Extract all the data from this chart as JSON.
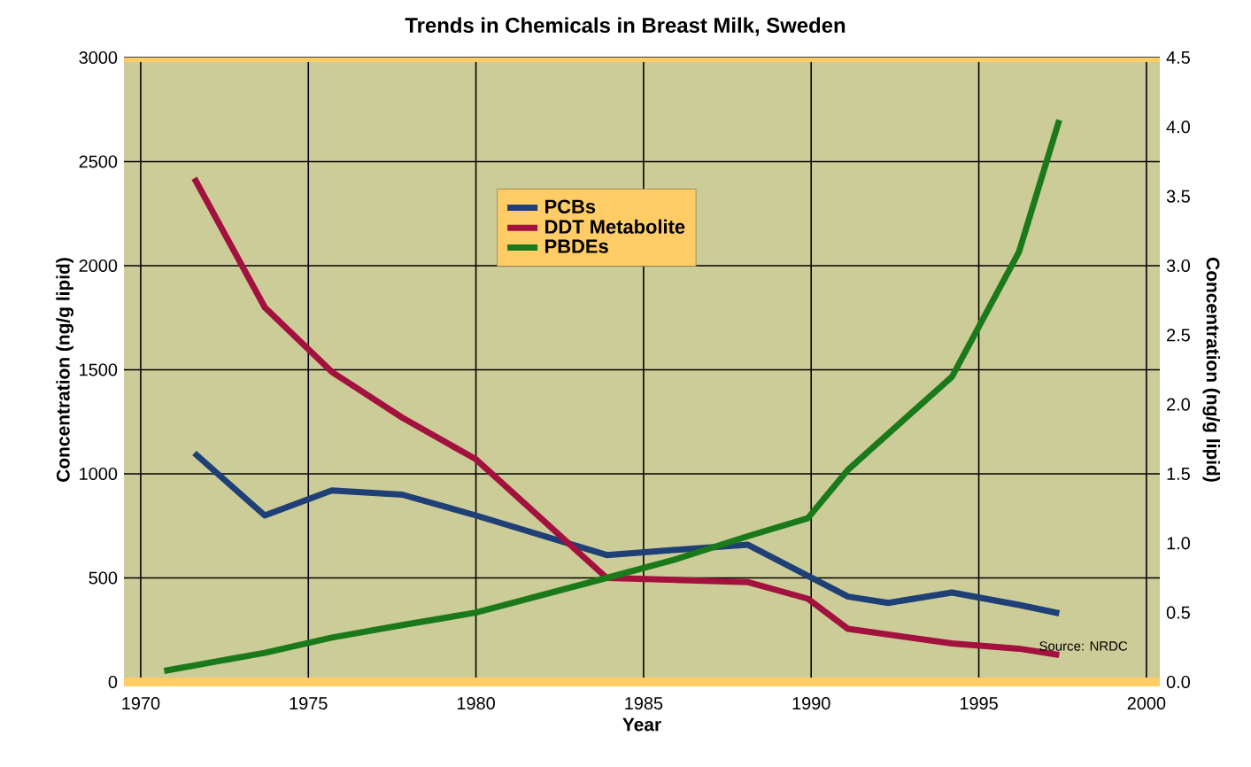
{
  "chart_data": {
    "type": "line",
    "title": "Trends in Chemicals in Breast Milk, Sweden",
    "xlabel": "Year",
    "ylabel": "Concentration (ng/g lipid)",
    "y2label": "Concentration (ng/g lipid)",
    "annotations": [
      "Source: NRDC"
    ],
    "series": [
      {
        "name": "PCBs",
        "color": "#1f3f77",
        "x": [
          1971.6,
          1973.7,
          1975.7,
          1977.8,
          1980.0,
          1983.9,
          1988.1,
          1989.9,
          1991.1,
          1992.3,
          1994.2,
          1996.2,
          1997.4
        ],
        "values": [
          1100,
          800,
          920,
          900,
          800,
          610,
          660,
          510,
          410,
          380,
          430,
          370,
          330
        ]
      },
      {
        "name": "DDT Metabolite",
        "color": "#a3123f",
        "x": [
          1971.6,
          1973.7,
          1975.7,
          1977.8,
          1980.0,
          1983.9,
          1988.1,
          1989.9,
          1991.1,
          1994.2,
          1996.2,
          1997.4
        ],
        "values": [
          2420,
          1800,
          1490,
          1270,
          1070,
          500,
          480,
          400,
          255,
          185,
          160,
          130
        ]
      },
      {
        "name": "PBDEs",
        "color": "#1a7a1a",
        "axis": "y2",
        "x": [
          1970.7,
          1973.7,
          1975.7,
          1977.8,
          1980.0,
          1983.9,
          1985.9,
          1988.1,
          1989.9,
          1991.1,
          1994.2,
          1996.2,
          1997.4
        ],
        "values": [
          0.08,
          0.21,
          0.32,
          0.41,
          0.5,
          0.75,
          0.88,
          1.05,
          1.18,
          1.53,
          2.2,
          3.1,
          4.05
        ]
      }
    ],
    "xlim": [
      1969.5,
      2000.4
    ],
    "ylim": [
      0,
      3000
    ],
    "y2lim": [
      0,
      4.5
    ],
    "xticks": [
      1970,
      1975,
      1980,
      1985,
      1990,
      1995,
      2000
    ],
    "yticks": [
      0,
      500,
      1000,
      1500,
      2000,
      2500,
      3000
    ],
    "y2ticks": [
      {
        "value": 0,
        "label": "0.0"
      },
      {
        "value": 0.5,
        "label": "0.5"
      },
      {
        "value": 1,
        "label": "1.0"
      },
      {
        "value": 1.5,
        "label": "1.5"
      },
      {
        "value": 2,
        "label": "2.0"
      },
      {
        "value": 2.5,
        "label": "2.5"
      },
      {
        "value": 3,
        "label": "3.0"
      },
      {
        "value": 3.5,
        "label": "3.5"
      },
      {
        "value": 4,
        "label": "4.0"
      },
      {
        "value": 4.5,
        "label": "4.5"
      }
    ],
    "grid": true,
    "legend": "top"
  }
}
